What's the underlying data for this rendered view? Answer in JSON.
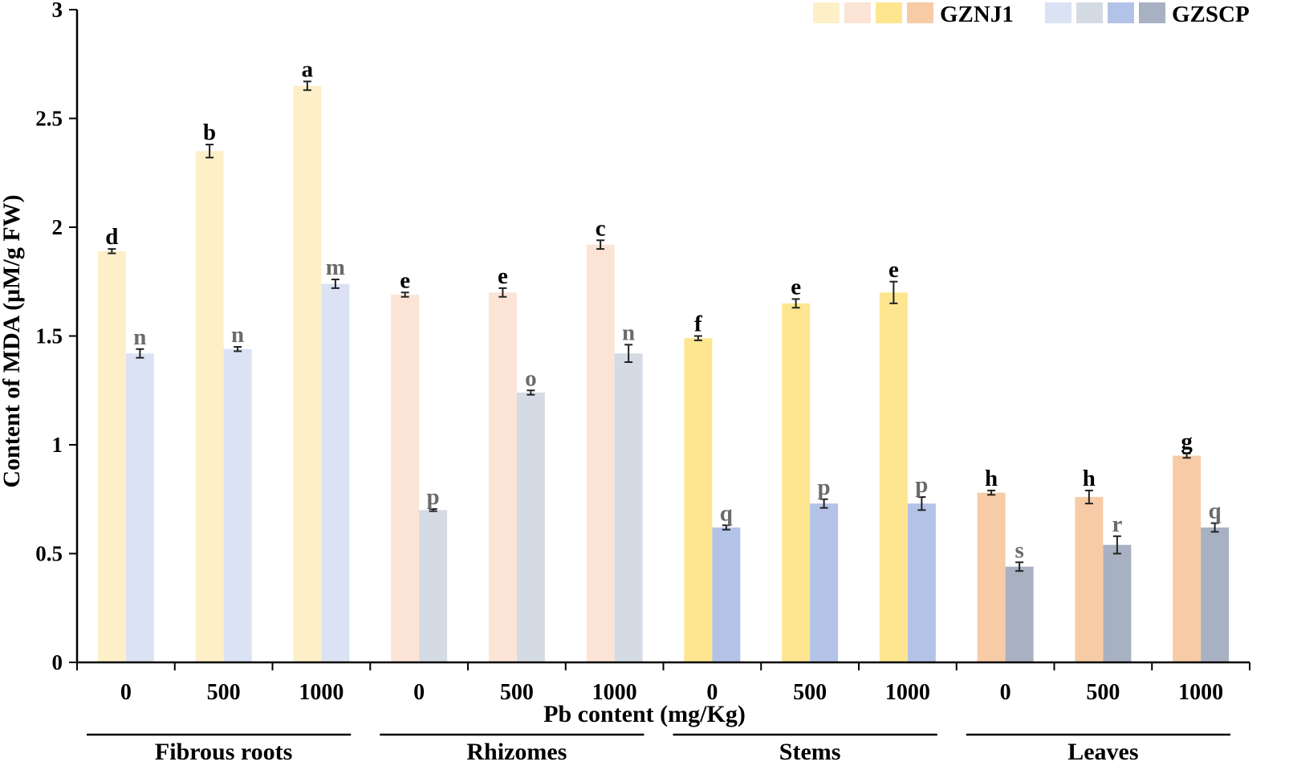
{
  "chart_data": {
    "type": "bar",
    "title": "",
    "xlabel": "Pb  content (mg/Kg)",
    "ylabel": "Content of MDA (μM/g FW)",
    "ylim": [
      0,
      3
    ],
    "yticks": [
      0,
      0.5,
      1,
      1.5,
      2,
      2.5,
      3
    ],
    "ytick_labels": [
      "0",
      "0.5",
      "1",
      "1.5",
      "2",
      "2.5",
      "3"
    ],
    "organs": [
      "Fibrous roots",
      "Rhizomes",
      "Stems",
      "Leaves"
    ],
    "pb_levels": [
      "0",
      "500",
      "1000"
    ],
    "categories": [
      "0",
      "500",
      "1000",
      "0",
      "500",
      "1000",
      "0",
      "500",
      "1000",
      "0",
      "500",
      "1000"
    ],
    "legend": {
      "position": "top-right",
      "groups": [
        {
          "name": "GZNJ1",
          "swatches": [
            "#FDF0C8",
            "#FBE4D6",
            "#FDE68F",
            "#F7CBA6"
          ]
        },
        {
          "name": "GZSCP",
          "swatches": [
            "#DBE2F4",
            "#D5DBE4",
            "#B3C3E8",
            "#A7B1C2"
          ]
        }
      ]
    },
    "series": [
      {
        "name": "GZNJ1",
        "values": [
          1.89,
          2.35,
          2.65,
          1.69,
          1.7,
          1.92,
          1.49,
          1.65,
          1.7,
          0.78,
          0.76,
          0.95
        ],
        "errors": [
          0.01,
          0.03,
          0.02,
          0.01,
          0.02,
          0.02,
          0.01,
          0.02,
          0.05,
          0.01,
          0.03,
          0.01
        ],
        "labels": [
          "d",
          "b",
          "a",
          "e",
          "e",
          "c",
          "f",
          "e",
          "e",
          "h",
          "h",
          "g"
        ],
        "colors": [
          "#FDF0C8",
          "#FBE4D6",
          "#FDE68F",
          "#F7CBA6"
        ],
        "label_color": "#000000"
      },
      {
        "name": "GZSCP",
        "values": [
          1.42,
          1.44,
          1.74,
          0.7,
          1.24,
          1.42,
          0.62,
          0.73,
          0.73,
          0.44,
          0.54,
          0.62
        ],
        "errors": [
          0.02,
          0.01,
          0.02,
          0.005,
          0.01,
          0.04,
          0.01,
          0.02,
          0.03,
          0.02,
          0.04,
          0.02
        ],
        "labels": [
          "n",
          "n",
          "m",
          "p",
          "o",
          "n",
          "q",
          "p",
          "p",
          "s",
          "r",
          "q"
        ],
        "colors": [
          "#DBE2F4",
          "#D5DBE4",
          "#B3C3E8",
          "#A7B1C2"
        ],
        "label_color": "#6B6B6B"
      }
    ]
  }
}
